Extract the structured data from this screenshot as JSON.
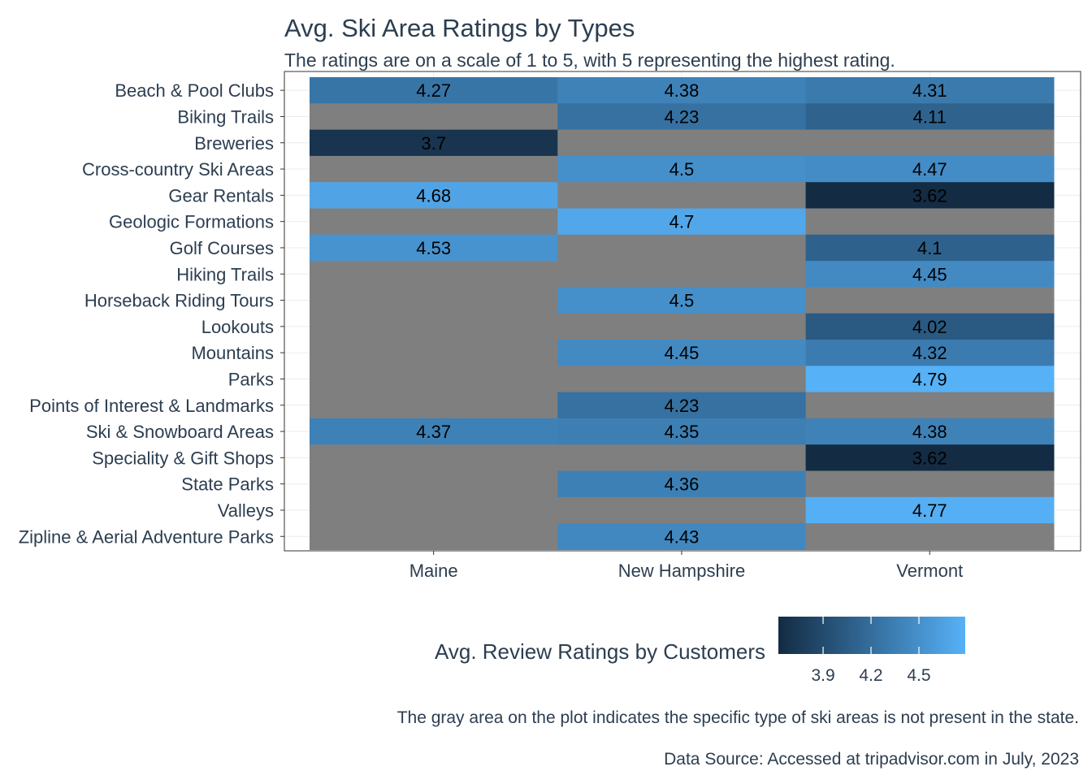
{
  "chart_data": {
    "type": "heatmap",
    "title": "Avg. Ski Area Ratings by Types",
    "subtitle": "The ratings are on a scale of 1 to 5, with 5 representing the highest rating.",
    "x_categories": [
      "Maine",
      "New Hampshire",
      "Vermont"
    ],
    "y_categories": [
      "Beach & Pool Clubs",
      "Biking Trails",
      "Breweries",
      "Cross-country Ski Areas",
      "Gear Rentals",
      "Geologic Formations",
      "Golf Courses",
      "Hiking Trails",
      "Horseback Riding Tours",
      "Lookouts",
      "Mountains",
      "Parks",
      "Points of Interest & Landmarks",
      "Ski & Snowboard Areas",
      "Speciality & Gift Shops",
      "State Parks",
      "Valleys",
      "Zipline & Aerial Adventure Parks"
    ],
    "values": [
      [
        4.27,
        4.38,
        4.31
      ],
      [
        null,
        4.23,
        4.11
      ],
      [
        3.7,
        null,
        null
      ],
      [
        null,
        4.5,
        4.47
      ],
      [
        4.68,
        null,
        3.62
      ],
      [
        null,
        4.7,
        null
      ],
      [
        4.53,
        null,
        4.1
      ],
      [
        null,
        null,
        4.45
      ],
      [
        null,
        4.5,
        null
      ],
      [
        null,
        null,
        4.02
      ],
      [
        null,
        4.45,
        4.32
      ],
      [
        null,
        null,
        4.79
      ],
      [
        null,
        4.23,
        null
      ],
      [
        4.37,
        4.35,
        4.38
      ],
      [
        null,
        null,
        3.62
      ],
      [
        null,
        4.36,
        null
      ],
      [
        null,
        null,
        4.77
      ],
      [
        null,
        4.43,
        null
      ]
    ],
    "value_labels": [
      [
        "4.27",
        "4.38",
        "4.31"
      ],
      [
        "",
        "4.23",
        "4.11"
      ],
      [
        "3.7",
        "",
        ""
      ],
      [
        "",
        "4.5",
        "4.47"
      ],
      [
        "4.68",
        "",
        "3.62"
      ],
      [
        "",
        "4.7",
        ""
      ],
      [
        "4.53",
        "",
        "4.1"
      ],
      [
        "",
        "",
        "4.45"
      ],
      [
        "",
        "4.5",
        ""
      ],
      [
        "",
        "",
        "4.02"
      ],
      [
        "",
        "4.45",
        "4.32"
      ],
      [
        "",
        "",
        "4.79"
      ],
      [
        "",
        "4.23",
        ""
      ],
      [
        "4.37",
        "4.35",
        "4.38"
      ],
      [
        "",
        "",
        "3.62"
      ],
      [
        "",
        "4.36",
        ""
      ],
      [
        "",
        "",
        "4.77"
      ],
      [
        "",
        "4.43",
        ""
      ]
    ],
    "color_scale": {
      "low": "#132B43",
      "high": "#56B1F7",
      "missing": "#7F7F7F",
      "range": [
        3.62,
        4.79
      ]
    },
    "legend": {
      "title": "Avg. Review Ratings by Customers",
      "ticks": [
        3.9,
        4.2,
        4.5
      ],
      "tick_labels": [
        "3.9",
        "4.2",
        "4.5"
      ],
      "position": "bottom"
    },
    "caption_lines": [
      "The gray area on the plot indicates the specific type of ski areas is not present in the state.",
      "Data Source: Accessed at tripadvisor.com in July, 2023"
    ],
    "grid": true,
    "text_color": "#2C3E50"
  }
}
